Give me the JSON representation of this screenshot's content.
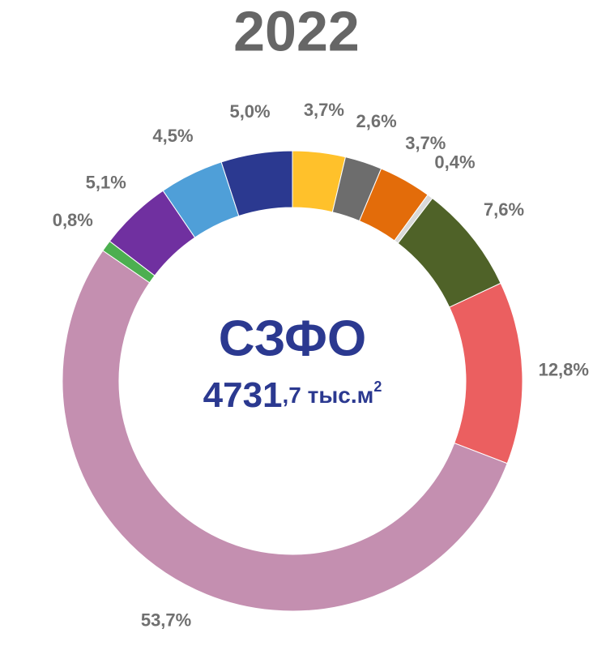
{
  "chart_data": {
    "type": "donut",
    "title": "2022",
    "center_title": "СЗФО",
    "center_value": "4731",
    "center_unit": ",7 тыс.м",
    "center_unit_power": "2",
    "values": [
      3.7,
      2.6,
      3.7,
      0.4,
      7.6,
      12.8,
      53.7,
      0.8,
      5.1,
      4.5,
      5.0
    ],
    "value_labels": [
      "3,7%",
      "2,6%",
      "3,7%",
      "0,4%",
      "7,6%",
      "12,8%",
      "53,7%",
      "0,8%",
      "5,1%",
      "4,5%",
      "5,0%"
    ],
    "colors": [
      "#ffc12b",
      "#6d6d6d",
      "#e36c0a",
      "#d9d9d9",
      "#4f6228",
      "#eb5f60",
      "#c48fb0",
      "#4caf50",
      "#7030a0",
      "#4f9fd8",
      "#2b3990"
    ]
  }
}
